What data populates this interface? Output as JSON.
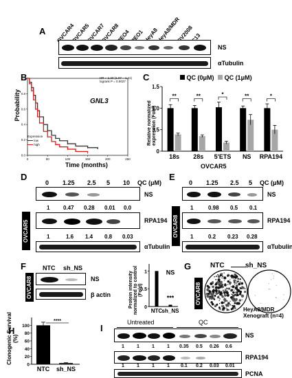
{
  "panels": [
    "A",
    "B",
    "C",
    "D",
    "E",
    "F",
    "G",
    "H",
    "I"
  ],
  "A": {
    "lanes": [
      "OVCAR4",
      "OVCAR5",
      "OVCAR7",
      "OVCAR8",
      "PEO4",
      "PEO1",
      "HeyA8",
      "HeyA8/MDR",
      "OV2008",
      "C13"
    ],
    "rows": [
      "NS",
      "αTubulin"
    ]
  },
  "B": {
    "gene": "GNL3",
    "stats": "HR = 1.23 (1.07 – 1.41)\nlogrank P = 0.0027",
    "ylabel": "Probability",
    "xlabel": "Time (months)",
    "legend_title": "Expression",
    "legend_low": "low",
    "legend_high": "high",
    "yticks": [
      "0.0",
      "0.2",
      "0.4",
      "0.6",
      "0.8",
      "1.0"
    ],
    "xticks": [
      "0",
      "50",
      "100",
      "150",
      "200",
      "250"
    ]
  },
  "C": {
    "legend": [
      "QC (0μM)",
      "QC (1μM)"
    ],
    "cell_line": "OVCAR5",
    "ylabel": "Relative normalized expression (Fold)"
  },
  "D": {
    "header": "QC (μM)",
    "doses": [
      "0",
      "1.25",
      "2.5",
      "5",
      "10"
    ],
    "side": "OVCAR5",
    "rows": [
      "NS",
      "RPA194",
      "αTubulin"
    ],
    "ns_values": [
      "1",
      "0.47",
      "0.28",
      "0.01",
      "0.0"
    ],
    "rpa_values": [
      "1",
      "1.6",
      "1.4",
      "0.8",
      "0.03"
    ]
  },
  "E": {
    "header": "QC (μM)",
    "doses": [
      "0",
      "1.25",
      "2.5",
      "5"
    ],
    "side": "OVCAR8",
    "rows": [
      "NS",
      "RPA194",
      "αTubulin"
    ],
    "ns_values": [
      "1",
      "0.98",
      "0.5",
      "0.1"
    ],
    "rpa_values": [
      "1",
      "0.2",
      "0.23",
      "0.28"
    ]
  },
  "F": {
    "lanes": [
      "NTC",
      "sh_NS"
    ],
    "side": "OVCAR8",
    "rows": [
      "NS",
      "β actin"
    ],
    "ylabel": "Protein intensity normalized to control (Fold)",
    "bar_label": "NS",
    "sig": "***",
    "yticks": [
      "0",
      "0.5",
      "1"
    ]
  },
  "G": {
    "labels": [
      "NTC",
      "sh_NS"
    ],
    "side": "OVCAR8"
  },
  "H": {
    "ylabel": "Clonogenic Survival (%)",
    "sig": "****",
    "yticks": [
      "0",
      "20",
      "40",
      "60",
      "80",
      "100"
    ]
  },
  "I": {
    "group_untreated": "Untreated",
    "group_qc": "QC",
    "title": "HeyA8/MDR\nXenograft (n=4)",
    "rows": [
      "NS",
      "RPA194",
      "PCNA"
    ],
    "ns_values": [
      "1",
      "1",
      "1",
      "1",
      "0.35",
      "0.5",
      "0.26",
      "0.6"
    ],
    "rpa_values": [
      "1",
      "1",
      "1",
      "1",
      "0.1",
      "0.2",
      "0.03",
      "0.01"
    ]
  },
  "chart_data": [
    {
      "type": "line",
      "panel": "B",
      "title": "GNL3",
      "xlabel": "Time (months)",
      "ylabel": "Probability",
      "xlim": [
        0,
        250
      ],
      "ylim": [
        0,
        1
      ],
      "series": [
        {
          "name": "low",
          "color": "#333333",
          "x": [
            0,
            5,
            10,
            15,
            20,
            25,
            30,
            40,
            50,
            60,
            70,
            80,
            100,
            120,
            150,
            175
          ],
          "y": [
            1.0,
            0.95,
            0.88,
            0.78,
            0.68,
            0.58,
            0.5,
            0.4,
            0.32,
            0.26,
            0.22,
            0.19,
            0.15,
            0.12,
            0.1,
            0.08
          ]
        },
        {
          "name": "high",
          "color": "#e31a1c",
          "x": [
            0,
            5,
            10,
            15,
            20,
            25,
            30,
            40,
            50,
            60,
            70,
            80,
            100,
            120,
            150
          ],
          "y": [
            1.0,
            0.93,
            0.84,
            0.72,
            0.6,
            0.5,
            0.42,
            0.31,
            0.24,
            0.18,
            0.14,
            0.11,
            0.08,
            0.05,
            0.03
          ]
        }
      ]
    },
    {
      "type": "bar",
      "panel": "C",
      "categories": [
        "18s",
        "28s",
        "5'ETS",
        "NS",
        "RPA194"
      ],
      "xlabel": "OVCAR5",
      "ylabel": "Relative normalized expression (Fold)",
      "ylim": [
        0,
        1.5
      ],
      "yticks": [
        "0",
        "0.5",
        "1.0",
        "1.5"
      ],
      "series": [
        {
          "name": "QC (0μM)",
          "color": "#000000",
          "values": [
            1.0,
            1.0,
            1.02,
            1.0,
            1.0
          ],
          "errors": [
            0.08,
            0.06,
            0.12,
            0.05,
            0.1
          ]
        },
        {
          "name": "QC (1μM)",
          "color": "#a6a6a6",
          "values": [
            0.39,
            0.35,
            0.2,
            0.73,
            0.5
          ],
          "errors": [
            0.03,
            0.03,
            0.03,
            0.12,
            0.1
          ]
        }
      ],
      "significance": [
        "**",
        "**",
        "*",
        "**",
        "*"
      ]
    },
    {
      "type": "bar",
      "panel": "F",
      "categories": [
        "NTC",
        "sh_NS"
      ],
      "values": [
        1.0,
        0.05
      ],
      "ylabel": "Protein intensity normalized to control (Fold)",
      "ylim": [
        0,
        1.2
      ]
    },
    {
      "type": "bar",
      "panel": "H",
      "categories": [
        "NTC",
        "sh_NS"
      ],
      "values": [
        100,
        3
      ],
      "errors": [
        8,
        1
      ],
      "ylabel": "Clonogenic Survival (%)",
      "ylim": [
        0,
        120
      ]
    }
  ]
}
